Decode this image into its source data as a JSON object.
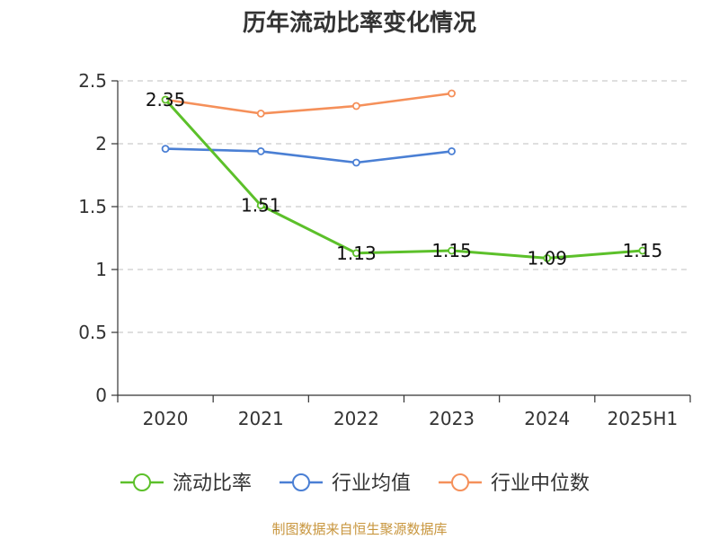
{
  "chart_data": {
    "type": "line",
    "title": "历年流动比率变化情况",
    "categories": [
      "2020",
      "2021",
      "2022",
      "2023",
      "2024",
      "2025H1"
    ],
    "ylim": [
      0,
      2.5
    ],
    "yticks": [
      "0",
      "0.5",
      "1",
      "1.5",
      "2",
      "2.5"
    ],
    "grid": "horizontal-dashed",
    "legend_position": "bottom",
    "series": [
      {
        "name": "流动比率",
        "color": "#5cc02a",
        "values": [
          2.35,
          1.51,
          1.13,
          1.15,
          1.09,
          1.15
        ],
        "labels": [
          "2.35",
          "1.51",
          "1.13",
          "1.15",
          "1.09",
          "1.15"
        ]
      },
      {
        "name": "行业均值",
        "color": "#4a7fd4",
        "values": [
          1.96,
          1.94,
          1.85,
          1.94,
          null,
          null
        ]
      },
      {
        "name": "行业中位数",
        "color": "#f5905a",
        "values": [
          2.35,
          2.24,
          2.3,
          2.4,
          null,
          null
        ]
      }
    ]
  },
  "source": "制图数据来自恒生聚源数据库"
}
